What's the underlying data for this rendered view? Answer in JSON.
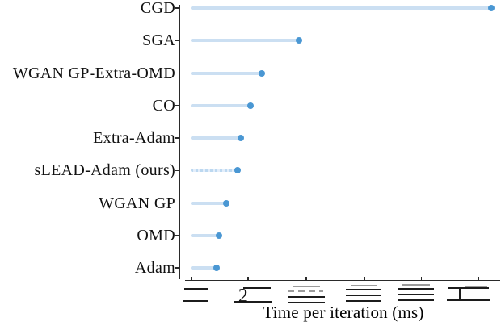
{
  "chart_data": {
    "type": "bar",
    "subtype": "horizontal-lollipop",
    "title": "",
    "xlabel": "Time per iteration (ms)",
    "ylabel": "",
    "x_scale": "log",
    "x_range_ms": [
      1.24,
      11.52
    ],
    "categories": [
      "CGD",
      "SGA",
      "WGAN GP-Extra-OMD",
      "CO",
      "Extra-Adam",
      "sLEAD-Adam (ours)",
      "WGAN GP",
      "OMD",
      "Adam"
    ],
    "values": [
      10.9,
      2.85,
      2.2,
      2.03,
      1.9,
      1.86,
      1.72,
      1.63,
      1.61
    ],
    "highlight_category": "sLEAD-Adam (ours)",
    "x_ticks": [
      {
        "value": 1.35,
        "glyph": ""
      },
      {
        "value": 2.0,
        "glyph": "2"
      },
      {
        "value": 3.0,
        "glyph": ""
      },
      {
        "value": 4.5,
        "glyph": ""
      },
      {
        "value": 6.7,
        "glyph": ""
      },
      {
        "value": 10.0,
        "glyph": "1"
      }
    ],
    "tick_labels_note": "x tick labels are garbled/illegible in the screenshot except the digits 2 and 1",
    "legend": null,
    "grid": false,
    "colors": {
      "stem": "#cbdff2",
      "dot": "#4a97d3",
      "axis": "#2a2a2a",
      "text": "#111111",
      "garbled_gray": "#9b9b9b"
    }
  }
}
